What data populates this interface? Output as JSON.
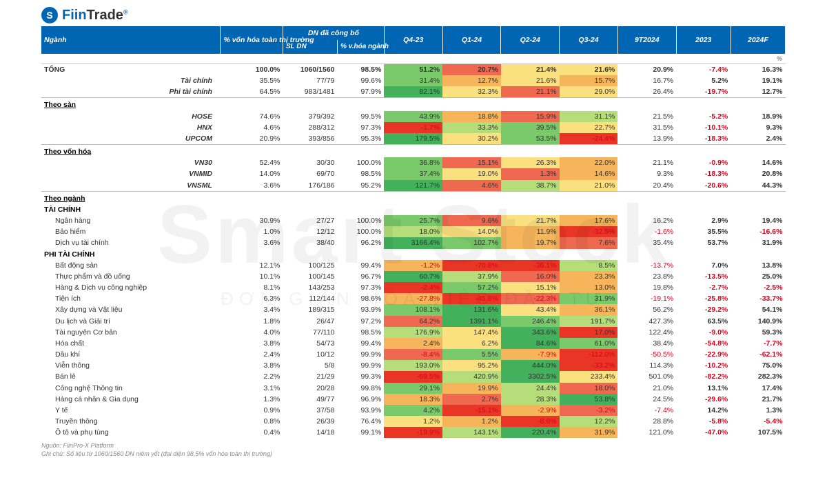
{
  "brand": {
    "logo_glyph": "S",
    "name_a": "Fiin",
    "name_b": "Trade",
    "reg": "®"
  },
  "watermark": {
    "big": "Smart Stock",
    "small": "ĐƠN GIẢN HÓA VIỆC ĐẦU TƯ"
  },
  "headers": {
    "nganh": "Ngành",
    "pct_von_hoa": "% vốn hóa toàn thị trường",
    "dn_cong_bo": "DN đã công bố",
    "sl_dn": "SL DN",
    "pct_vhoa_nganh": "% v.hóa ngành",
    "q4_23": "Q4-23",
    "q1_24": "Q1-24",
    "q2_24": "Q2-24",
    "q3_24": "Q3-24",
    "nine_t": "9T2024",
    "y2023": "2023",
    "y2024f": "2024F",
    "unit": "%"
  },
  "footnote": {
    "l1": "Nguồn: FiinPro-X Platform",
    "l2": "Ghi chú: Số liệu từ 1060/1560 DN niêm yết (đại diện 98,5% vốn hóa toàn thị trường)"
  },
  "heat_colors": {
    "deep_red": "#e83525",
    "red": "#ef6950",
    "orange": "#f6b55b",
    "yellow": "#fbe080",
    "lightgreen": "#b5dd7a",
    "green": "#7ac96a",
    "deep_green": "#43b05c"
  },
  "rows": [
    {
      "type": "total",
      "name": "TỔNG",
      "pct": "100.0%",
      "sldn": "1060/1560",
      "vhoa": "98.5%",
      "q": [
        {
          "v": "51.2%",
          "c": "green"
        },
        {
          "v": "20.7%",
          "c": "red"
        },
        {
          "v": "21.4%",
          "c": "yellow"
        },
        {
          "v": "21.6%",
          "c": "yellow"
        }
      ],
      "nt": "20.9%",
      "y23": "-7.4%",
      "y24": "16.3%"
    },
    {
      "type": "italic",
      "name": "Tài chính",
      "pct": "35.5%",
      "sldn": "77/79",
      "vhoa": "99.6%",
      "q": [
        {
          "v": "31.4%",
          "c": "green"
        },
        {
          "v": "12.7%",
          "c": "orange"
        },
        {
          "v": "21.6%",
          "c": "yellow"
        },
        {
          "v": "15.7%",
          "c": "orange"
        }
      ],
      "nt": "16.7%",
      "y23": "5.2%",
      "y24": "19.1%"
    },
    {
      "type": "italic",
      "name": "Phi tài chính",
      "pct": "64.5%",
      "sldn": "983/1481",
      "vhoa": "97.9%",
      "q": [
        {
          "v": "82.1%",
          "c": "deep_green"
        },
        {
          "v": "32.3%",
          "c": "yellow"
        },
        {
          "v": "21.1%",
          "c": "red"
        },
        {
          "v": "29.0%",
          "c": "yellow"
        }
      ],
      "nt": "26.4%",
      "y23": "-19.7%",
      "y24": "12.7%"
    },
    {
      "type": "section",
      "name": "Theo sàn"
    },
    {
      "type": "italic",
      "name": "HOSE",
      "pct": "74.6%",
      "sldn": "379/392",
      "vhoa": "99.5%",
      "q": [
        {
          "v": "43.9%",
          "c": "green"
        },
        {
          "v": "18.8%",
          "c": "orange"
        },
        {
          "v": "15.9%",
          "c": "red"
        },
        {
          "v": "31.1%",
          "c": "lightgreen"
        }
      ],
      "nt": "21.5%",
      "y23": "-5.2%",
      "y24": "18.9%"
    },
    {
      "type": "italic",
      "name": "HNX",
      "pct": "4.6%",
      "sldn": "288/312",
      "vhoa": "97.3%",
      "q": [
        {
          "v": "-1.7%",
          "c": "deep_red"
        },
        {
          "v": "33.3%",
          "c": "lightgreen"
        },
        {
          "v": "39.5%",
          "c": "green"
        },
        {
          "v": "22.7%",
          "c": "yellow"
        }
      ],
      "nt": "31.5%",
      "y23": "-10.1%",
      "y24": "9.3%"
    },
    {
      "type": "italic",
      "name": "UPCOM",
      "pct": "20.9%",
      "sldn": "393/856",
      "vhoa": "95.3%",
      "q": [
        {
          "v": "179.5%",
          "c": "deep_green"
        },
        {
          "v": "30.2%",
          "c": "yellow"
        },
        {
          "v": "53.5%",
          "c": "green"
        },
        {
          "v": "-24.4%",
          "c": "deep_red"
        }
      ],
      "nt": "13.9%",
      "y23": "-18.3%",
      "y24": "2.4%"
    },
    {
      "type": "section",
      "name": "Theo vốn hóa"
    },
    {
      "type": "italic",
      "name": "VN30",
      "pct": "52.4%",
      "sldn": "30/30",
      "vhoa": "100.0%",
      "q": [
        {
          "v": "36.8%",
          "c": "green"
        },
        {
          "v": "15.1%",
          "c": "red"
        },
        {
          "v": "26.3%",
          "c": "yellow"
        },
        {
          "v": "22.0%",
          "c": "orange"
        }
      ],
      "nt": "21.1%",
      "y23": "-0.9%",
      "y24": "14.6%"
    },
    {
      "type": "italic",
      "name": "VNMID",
      "pct": "14.0%",
      "sldn": "69/70",
      "vhoa": "98.5%",
      "q": [
        {
          "v": "37.4%",
          "c": "green"
        },
        {
          "v": "19.0%",
          "c": "yellow"
        },
        {
          "v": "1.3%",
          "c": "red"
        },
        {
          "v": "14.6%",
          "c": "orange"
        }
      ],
      "nt": "9.3%",
      "y23": "-18.3%",
      "y24": "20.8%"
    },
    {
      "type": "italic",
      "name": "VNSML",
      "pct": "3.6%",
      "sldn": "176/186",
      "vhoa": "95.2%",
      "q": [
        {
          "v": "121.7%",
          "c": "deep_green"
        },
        {
          "v": "4.6%",
          "c": "red"
        },
        {
          "v": "38.7%",
          "c": "lightgreen"
        },
        {
          "v": "21.0%",
          "c": "yellow"
        }
      ],
      "nt": "20.4%",
      "y23": "-20.6%",
      "y24": "44.3%"
    },
    {
      "type": "section",
      "name": "Theo ngành"
    },
    {
      "type": "subheader",
      "name": "TÀI CHÍNH"
    },
    {
      "type": "row",
      "name": "Ngân hàng",
      "pct": "30.9%",
      "sldn": "27/27",
      "vhoa": "100.0%",
      "q": [
        {
          "v": "25.7%",
          "c": "green"
        },
        {
          "v": "9.6%",
          "c": "red"
        },
        {
          "v": "21.7%",
          "c": "yellow"
        },
        {
          "v": "17.6%",
          "c": "orange"
        }
      ],
      "nt": "16.2%",
      "y23": "2.9%",
      "y24": "19.4%"
    },
    {
      "type": "row",
      "name": "Bảo hiểm",
      "pct": "1.0%",
      "sldn": "12/12",
      "vhoa": "100.0%",
      "q": [
        {
          "v": "18.0%",
          "c": "lightgreen"
        },
        {
          "v": "14.0%",
          "c": "yellow"
        },
        {
          "v": "11.9%",
          "c": "orange"
        },
        {
          "v": "-32.5%",
          "c": "deep_red"
        }
      ],
      "nt": "-1.6%",
      "y23": "35.5%",
      "y24": "-16.6%"
    },
    {
      "type": "row",
      "name": "Dịch vụ tài chính",
      "pct": "3.6%",
      "sldn": "38/40",
      "vhoa": "96.2%",
      "q": [
        {
          "v": "3166.4%",
          "c": "deep_green"
        },
        {
          "v": "102.7%",
          "c": "green"
        },
        {
          "v": "19.7%",
          "c": "orange"
        },
        {
          "v": "7.6%",
          "c": "red"
        }
      ],
      "nt": "35.4%",
      "y23": "53.7%",
      "y24": "31.9%"
    },
    {
      "type": "subheader",
      "name": "PHI TÀI CHÍNH"
    },
    {
      "type": "row",
      "name": "Bất động sản",
      "pct": "12.1%",
      "sldn": "100/125",
      "vhoa": "99.4%",
      "q": [
        {
          "v": "-1.2%",
          "c": "orange"
        },
        {
          "v": "-70.8%",
          "c": "deep_red"
        },
        {
          "v": "-36.1%",
          "c": "deep_red"
        },
        {
          "v": "8.5%",
          "c": "lightgreen"
        }
      ],
      "nt": "-13.7%",
      "y23": "7.0%",
      "y24": "13.8%"
    },
    {
      "type": "row",
      "name": "Thực phẩm và đồ uống",
      "pct": "10.1%",
      "sldn": "100/145",
      "vhoa": "96.7%",
      "q": [
        {
          "v": "60.7%",
          "c": "deep_green"
        },
        {
          "v": "37.9%",
          "c": "lightgreen"
        },
        {
          "v": "16.0%",
          "c": "red"
        },
        {
          "v": "23.3%",
          "c": "orange"
        }
      ],
      "nt": "23.8%",
      "y23": "-13.5%",
      "y24": "25.0%"
    },
    {
      "type": "row",
      "name": "Hàng & Dịch vụ công nghiệp",
      "pct": "8.1%",
      "sldn": "143/253",
      "vhoa": "97.3%",
      "q": [
        {
          "v": "-2.4%",
          "c": "deep_red"
        },
        {
          "v": "57.2%",
          "c": "green"
        },
        {
          "v": "15.1%",
          "c": "yellow"
        },
        {
          "v": "13.0%",
          "c": "orange"
        }
      ],
      "nt": "19.8%",
      "y23": "-2.7%",
      "y24": "-2.5%"
    },
    {
      "type": "row",
      "name": "Tiện ích",
      "pct": "6.3%",
      "sldn": "112/144",
      "vhoa": "98.6%",
      "q": [
        {
          "v": "-27.8%",
          "c": "orange"
        },
        {
          "v": "-45.8%",
          "c": "deep_red"
        },
        {
          "v": "-22.3%",
          "c": "red"
        },
        {
          "v": "31.9%",
          "c": "green"
        }
      ],
      "nt": "-19.1%",
      "y23": "-25.8%",
      "y24": "-33.7%"
    },
    {
      "type": "row",
      "name": "Xây dựng và Vật liệu",
      "pct": "3.4%",
      "sldn": "189/315",
      "vhoa": "93.9%",
      "q": [
        {
          "v": "108.1%",
          "c": "green"
        },
        {
          "v": "131.6%",
          "c": "deep_green"
        },
        {
          "v": "43.4%",
          "c": "yellow"
        },
        {
          "v": "36.1%",
          "c": "orange"
        }
      ],
      "nt": "56.2%",
      "y23": "-29.2%",
      "y24": "54.1%"
    },
    {
      "type": "row",
      "name": "Du lịch và Giải trí",
      "pct": "1.8%",
      "sldn": "26/47",
      "vhoa": "97.2%",
      "q": [
        {
          "v": "64.2%",
          "c": "red"
        },
        {
          "v": "1391.1%",
          "c": "deep_green"
        },
        {
          "v": "246.4%",
          "c": "green"
        },
        {
          "v": "191.7%",
          "c": "lightgreen"
        }
      ],
      "nt": "427.3%",
      "y23": "63.5%",
      "y24": "140.9%"
    },
    {
      "type": "row",
      "name": "Tài nguyên Cơ bản",
      "pct": "4.0%",
      "sldn": "77/110",
      "vhoa": "98.5%",
      "q": [
        {
          "v": "176.9%",
          "c": "lightgreen"
        },
        {
          "v": "147.4%",
          "c": "yellow"
        },
        {
          "v": "343.6%",
          "c": "deep_green"
        },
        {
          "v": "17.0%",
          "c": "deep_red"
        }
      ],
      "nt": "122.4%",
      "y23": "-9.0%",
      "y24": "59.3%"
    },
    {
      "type": "row",
      "name": "Hóa chất",
      "pct": "3.8%",
      "sldn": "54/73",
      "vhoa": "99.4%",
      "q": [
        {
          "v": "2.4%",
          "c": "orange"
        },
        {
          "v": "6.2%",
          "c": "yellow"
        },
        {
          "v": "84.6%",
          "c": "deep_green"
        },
        {
          "v": "61.0%",
          "c": "green"
        }
      ],
      "nt": "38.4%",
      "y23": "-54.8%",
      "y24": "-7.7%"
    },
    {
      "type": "row",
      "name": "Dầu khí",
      "pct": "2.4%",
      "sldn": "10/12",
      "vhoa": "99.9%",
      "q": [
        {
          "v": "-8.4%",
          "c": "red"
        },
        {
          "v": "5.5%",
          "c": "green"
        },
        {
          "v": "-7.9%",
          "c": "orange"
        },
        {
          "v": "-112.0%",
          "c": "deep_red"
        }
      ],
      "nt": "-50.5%",
      "y23": "-22.9%",
      "y24": "-62.1%"
    },
    {
      "type": "row",
      "name": "Viễn thông",
      "pct": "3.8%",
      "sldn": "5/8",
      "vhoa": "99.9%",
      "q": [
        {
          "v": "193.0%",
          "c": "lightgreen"
        },
        {
          "v": "95.2%",
          "c": "yellow"
        },
        {
          "v": "444.0%",
          "c": "deep_green"
        },
        {
          "v": "-33.2%",
          "c": "deep_red"
        }
      ],
      "nt": "114.3%",
      "y23": "-10.2%",
      "y24": "75.0%"
    },
    {
      "type": "row",
      "name": "Bán lẻ",
      "pct": "2.2%",
      "sldn": "21/29",
      "vhoa": "99.3%",
      "q": [
        {
          "v": "-69.5%",
          "c": "deep_red"
        },
        {
          "v": "420.9%",
          "c": "lightgreen"
        },
        {
          "v": "3302.5%",
          "c": "deep_green"
        },
        {
          "v": "233.4%",
          "c": "yellow"
        }
      ],
      "nt": "501.0%",
      "y23": "-82.2%",
      "y24": "282.3%"
    },
    {
      "type": "row",
      "name": "Công nghệ Thông tin",
      "pct": "3.1%",
      "sldn": "20/28",
      "vhoa": "99.8%",
      "q": [
        {
          "v": "29.1%",
          "c": "green"
        },
        {
          "v": "19.9%",
          "c": "orange"
        },
        {
          "v": "24.4%",
          "c": "lightgreen"
        },
        {
          "v": "18.0%",
          "c": "red"
        }
      ],
      "nt": "21.0%",
      "y23": "13.1%",
      "y24": "17.4%"
    },
    {
      "type": "row",
      "name": "Hàng cá nhân & Gia dụng",
      "pct": "1.3%",
      "sldn": "49/77",
      "vhoa": "96.9%",
      "q": [
        {
          "v": "18.3%",
          "c": "orange"
        },
        {
          "v": "2.7%",
          "c": "red"
        },
        {
          "v": "28.3%",
          "c": "lightgreen"
        },
        {
          "v": "53.8%",
          "c": "deep_green"
        }
      ],
      "nt": "24.5%",
      "y23": "-29.6%",
      "y24": "21.7%"
    },
    {
      "type": "row",
      "name": "Y tế",
      "pct": "0.9%",
      "sldn": "37/58",
      "vhoa": "93.9%",
      "q": [
        {
          "v": "4.2%",
          "c": "green"
        },
        {
          "v": "-15.1%",
          "c": "deep_red"
        },
        {
          "v": "-2.9%",
          "c": "orange"
        },
        {
          "v": "-3.2%",
          "c": "red"
        }
      ],
      "nt": "-7.4%",
      "y23": "14.2%",
      "y24": "1.3%"
    },
    {
      "type": "row",
      "name": "Truyền thông",
      "pct": "0.8%",
      "sldn": "26/39",
      "vhoa": "76.4%",
      "q": [
        {
          "v": "1.2%",
          "c": "yellow"
        },
        {
          "v": "1.2%",
          "c": "orange"
        },
        {
          "v": "-8.6%",
          "c": "deep_red"
        },
        {
          "v": "12.2%",
          "c": "lightgreen"
        }
      ],
      "nt": "28.8%",
      "y23": "-5.8%",
      "y24": "-5.4%"
    },
    {
      "type": "row",
      "name": "Ô tô và phụ tùng",
      "pct": "0.4%",
      "sldn": "14/18",
      "vhoa": "99.1%",
      "q": [
        {
          "v": "-19.9%",
          "c": "deep_red"
        },
        {
          "v": "143.1%",
          "c": "lightgreen"
        },
        {
          "v": "220.4%",
          "c": "deep_green"
        },
        {
          "v": "31.9%",
          "c": "orange"
        }
      ],
      "nt": "121.0%",
      "y23": "-47.0%",
      "y24": "107.5%"
    }
  ]
}
